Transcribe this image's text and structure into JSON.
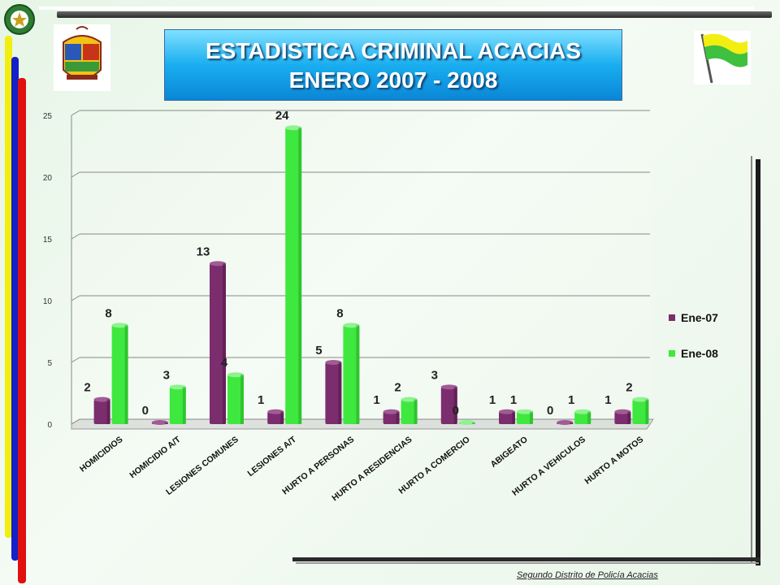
{
  "title": {
    "line1": "ESTADISTICA CRIMINAL ACACIAS",
    "line2": "ENERO 2007 - 2008"
  },
  "footer": "Segundo Distrito de Policía Acacias",
  "colors": {
    "series_ene07": "#7b2d6e",
    "series_ene08": "#3fe83f"
  },
  "icons": {
    "badge": "police-badge-icon",
    "crest": "municipal-crest-icon",
    "flag": "waving-flag-icon"
  },
  "chart_data": {
    "type": "bar",
    "categories": [
      "HOMICIDIOS",
      "HOMICIDIO A/T",
      "LESIONES COMUNES",
      "LESIONES A/T",
      "HURTO A PERSONAS",
      "HURTO A RESIDENCIAS",
      "HURTO A COMERCIO",
      "ABIGEATO",
      "HURTO A VEHICULOS",
      "HURTO A MOTOS"
    ],
    "series": [
      {
        "name": "Ene-07",
        "values": [
          2,
          0,
          13,
          1,
          5,
          1,
          3,
          1,
          0,
          1
        ]
      },
      {
        "name": "Ene-08",
        "values": [
          8,
          3,
          4,
          24,
          8,
          2,
          0,
          1,
          1,
          2
        ]
      }
    ],
    "ylim": [
      0,
      25
    ],
    "yticks": [
      "0",
      "5",
      "10",
      "15",
      "20",
      "25"
    ],
    "grid": true,
    "legend": "right",
    "data_labels": true
  }
}
